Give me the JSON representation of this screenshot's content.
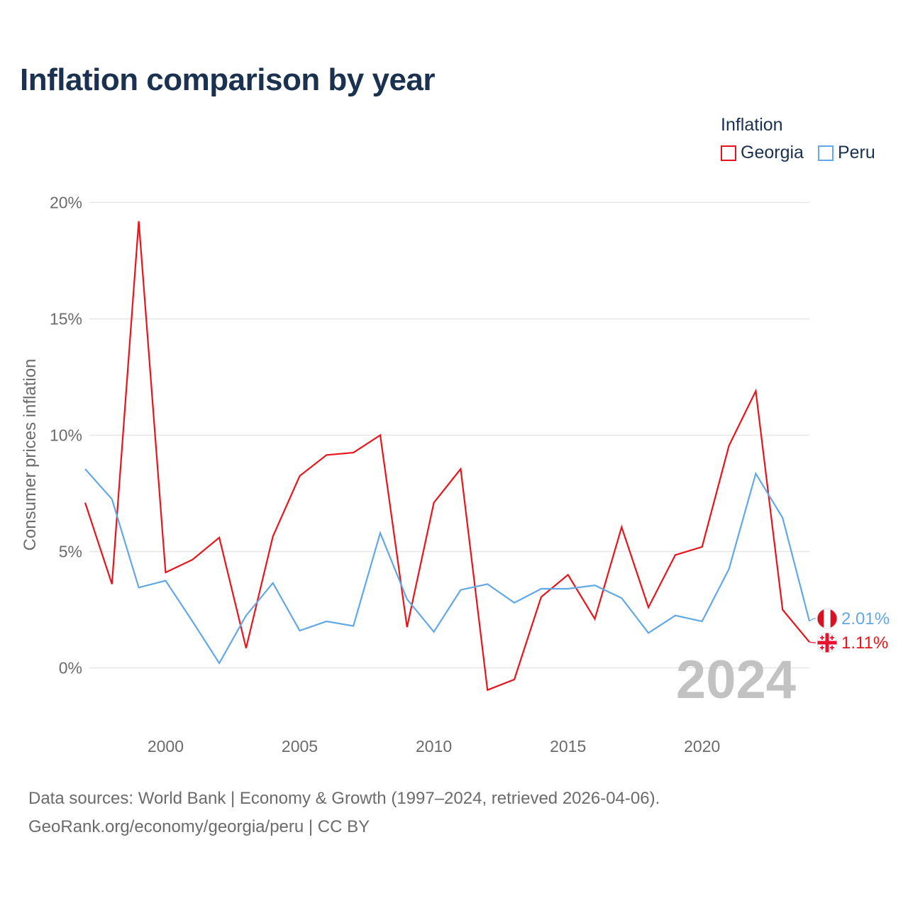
{
  "header": {
    "title": "Inflation comparison by year"
  },
  "legend": {
    "title": "Inflation",
    "items": [
      {
        "label": "Georgia",
        "color": "#e8141c"
      },
      {
        "label": "Peru",
        "color": "#62a8e5"
      }
    ]
  },
  "chart_data": {
    "type": "line",
    "title": "Inflation comparison by year",
    "xlabel": "",
    "ylabel": "Consumer prices inflation",
    "xlim": [
      1997,
      2024
    ],
    "ylim": [
      -2,
      20
    ],
    "x_ticks": [
      2000,
      2005,
      2010,
      2015,
      2020
    ],
    "x_tick_labels": [
      "2000",
      "2005",
      "2010",
      "2015",
      "2020"
    ],
    "y_ticks": [
      0,
      5,
      10,
      15,
      20
    ],
    "y_tick_labels": [
      "0%",
      "5%",
      "10%",
      "15%",
      "20%"
    ],
    "grid": true,
    "legend_position": "top-right",
    "current_year_label": "2024",
    "x": [
      1997,
      1998,
      1999,
      2000,
      2001,
      2002,
      2003,
      2004,
      2005,
      2006,
      2007,
      2008,
      2009,
      2010,
      2011,
      2012,
      2013,
      2014,
      2015,
      2016,
      2017,
      2018,
      2019,
      2020,
      2021,
      2022,
      2023,
      2024
    ],
    "series": [
      {
        "name": "Georgia",
        "color": "#e8141c",
        "values": [
          7.1,
          3.6,
          19.2,
          4.1,
          4.65,
          5.6,
          0.85,
          5.65,
          8.25,
          9.15,
          9.25,
          10.0,
          1.75,
          7.1,
          8.55,
          -0.95,
          -0.5,
          3.05,
          4.0,
          2.1,
          6.05,
          2.6,
          4.85,
          5.2,
          9.55,
          11.9,
          2.5,
          1.11
        ],
        "end_label": "1.11%",
        "flag": "georgia-flag-icon"
      },
      {
        "name": "Peru",
        "color": "#62a8e5",
        "values": [
          8.55,
          7.25,
          3.45,
          3.75,
          2.0,
          0.2,
          2.25,
          3.65,
          1.6,
          2.0,
          1.8,
          5.8,
          2.95,
          1.55,
          3.35,
          3.6,
          2.8,
          3.4,
          3.4,
          3.55,
          3.0,
          1.5,
          2.25,
          2.0,
          4.25,
          8.35,
          6.45,
          2.01
        ],
        "end_label": "2.01%",
        "flag": "peru-flag-icon"
      }
    ]
  },
  "footer": {
    "source": "Data sources: World Bank | Economy & Growth (1997–2024, retrieved 2026-04-06).",
    "credit": "GeoRank.org/economy/georgia/peru | CC BY"
  }
}
